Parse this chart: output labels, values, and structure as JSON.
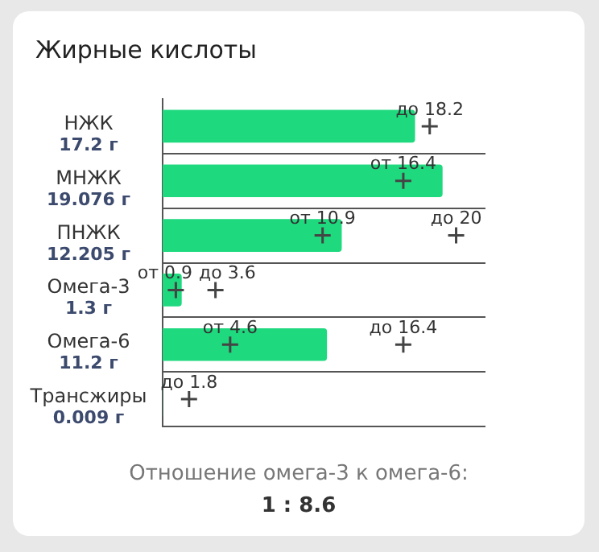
{
  "chart_data": {
    "type": "bar",
    "orientation": "horizontal",
    "title": "Жирные кислоты",
    "categories": [
      "НЖК",
      "МНЖК",
      "ПНЖК",
      "Омега-3",
      "Омега-6",
      "Трансжиры"
    ],
    "series": [
      {
        "type": "bar",
        "color": "#1ed97e",
        "values": [
          17.2,
          19.076,
          12.205,
          1.3,
          11.2,
          0.009
        ],
        "value_labels": [
          "17.2 г",
          "19.076 г",
          "12.205 г",
          "1.3 г",
          "11.2 г",
          "0.009 г"
        ]
      },
      {
        "type": "scatter",
        "color": "#444444",
        "marker": "cross",
        "x": [
          "НЖК",
          "МНЖК",
          "ПНЖК",
          "ПНЖК",
          "Омега-3",
          "Омега-3",
          "Омега-6",
          "Омега-6",
          "Трансжиры"
        ],
        "values": [
          18.2,
          16.4,
          10.9,
          20,
          0.9,
          3.6,
          4.6,
          16.4,
          1.8
        ],
        "value_labels": [
          "до 18.2",
          "от 16.4",
          "от 10.9",
          "до 20",
          "от 0.9",
          "до 3.6",
          "от 4.6",
          "до 16.4",
          "до 1.8"
        ]
      }
    ],
    "xlim": [
      0,
      22
    ],
    "tick_labels": "y",
    "grid": "y",
    "annotations": [
      "Отношение омега-3 к омега-6:",
      "1 : 8.6"
    ]
  }
}
